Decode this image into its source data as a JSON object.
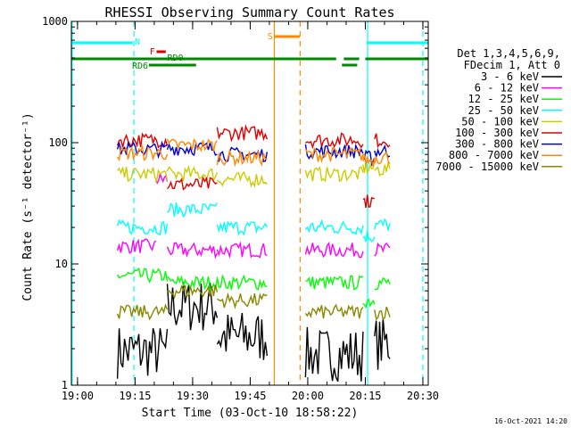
{
  "chart_data": {
    "type": "line",
    "title": "RHESSI Observing Summary Count Rates",
    "xlabel": "Start Time (03-Oct-10 18:58:22)",
    "ylabel": "Count Rate (s⁻¹ detector⁻¹)",
    "yscale": "log",
    "ylim": [
      1,
      1000
    ],
    "xlim_minutes_after_1858_22": [
      0,
      93
    ],
    "x_ticks": [
      {
        "label": "19:00",
        "t": 1.6
      },
      {
        "label": "19:15",
        "t": 16.6
      },
      {
        "label": "19:30",
        "t": 31.6
      },
      {
        "label": "19:45",
        "t": 46.6
      },
      {
        "label": "20:00",
        "t": 61.6
      },
      {
        "label": "20:15",
        "t": 76.6
      },
      {
        "label": "20:30",
        "t": 91.6
      }
    ],
    "y_ticks": [
      {
        "label": "1",
        "v": 1
      },
      {
        "label": "10",
        "v": 10
      },
      {
        "label": "100",
        "v": 100
      },
      {
        "label": "1000",
        "v": 1000
      }
    ],
    "legend_header": [
      "Det 1,3,4,5,6,9,",
      "FDecim 1, Att 0"
    ],
    "legend_position": "right",
    "series": [
      {
        "name": "3 - 6 keV",
        "color": "#000000",
        "levels": [
          [
            12,
            25,
            1.9
          ],
          [
            25,
            38,
            4.5
          ],
          [
            38,
            51,
            2.5
          ],
          [
            61,
            76,
            1.8
          ],
          [
            79,
            83,
            2.2
          ]
        ]
      },
      {
        "name": "6 - 12 keV",
        "color": "#ff00ff",
        "levels": [
          [
            12,
            22,
            14
          ],
          [
            22,
            25,
            50
          ],
          [
            25,
            38,
            13
          ],
          [
            38,
            51,
            13
          ],
          [
            61,
            76,
            13
          ],
          [
            79,
            83,
            13
          ]
        ]
      },
      {
        "name": "12 - 25 keV",
        "color": "#00ff00",
        "levels": [
          [
            12,
            25,
            8
          ],
          [
            25,
            38,
            7
          ],
          [
            38,
            51,
            7
          ],
          [
            61,
            76,
            7
          ],
          [
            76,
            79,
            5
          ],
          [
            79,
            83,
            7
          ]
        ]
      },
      {
        "name": "25 - 50 keV",
        "color": "#00ffff",
        "levels": [
          [
            12,
            25,
            20
          ],
          [
            25,
            38,
            28
          ],
          [
            38,
            51,
            20
          ],
          [
            61,
            76,
            20
          ],
          [
            76,
            79,
            17
          ],
          [
            79,
            83,
            21
          ]
        ]
      },
      {
        "name": "50 - 100 keV",
        "color": "#cccc00",
        "levels": [
          [
            12,
            25,
            55
          ],
          [
            25,
            38,
            55
          ],
          [
            38,
            51,
            50
          ],
          [
            61,
            76,
            55
          ],
          [
            76,
            79,
            62
          ],
          [
            79,
            83,
            60
          ]
        ]
      },
      {
        "name": "100 - 300 keV",
        "color": "#dd0000",
        "levels": [
          [
            12,
            25,
            105
          ],
          [
            25,
            38,
            45
          ],
          [
            38,
            51,
            120
          ],
          [
            61,
            76,
            105
          ],
          [
            76,
            79,
            33
          ],
          [
            79,
            83,
            105
          ]
        ]
      },
      {
        "name": "300 - 800 keV",
        "color": "#0000cc",
        "levels": [
          [
            12,
            25,
            88
          ],
          [
            25,
            38,
            90
          ],
          [
            38,
            51,
            80
          ],
          [
            61,
            76,
            85
          ],
          [
            76,
            79,
            75
          ],
          [
            79,
            83,
            85
          ]
        ]
      },
      {
        "name": "800 - 7000 keV",
        "color": "#ff8800",
        "levels": [
          [
            12,
            25,
            82
          ],
          [
            25,
            38,
            95
          ],
          [
            38,
            51,
            75
          ],
          [
            61,
            76,
            80
          ],
          [
            76,
            79,
            72
          ],
          [
            79,
            83,
            76
          ]
        ]
      },
      {
        "name": "7000 - 15000 keV",
        "color": "#888800",
        "levels": [
          [
            12,
            25,
            4
          ],
          [
            25,
            38,
            6
          ],
          [
            38,
            51,
            5
          ],
          [
            61,
            76,
            4
          ],
          [
            79,
            83,
            4
          ]
        ]
      }
    ],
    "flag_bars": [
      {
        "label": "N",
        "color": "#00ffff",
        "segments": [
          [
            0,
            16
          ],
          [
            77,
            93
          ]
        ]
      },
      {
        "label": "F",
        "color": "#dd0000",
        "segments": [
          [
            22.2,
            24.6
          ]
        ]
      },
      {
        "label": "S",
        "color": "#ff8800",
        "segments": [
          [
            53,
            59.5
          ]
        ]
      },
      {
        "label": "RD0",
        "color": "#008800",
        "segments": [
          [
            0,
            69
          ],
          [
            71,
            75
          ],
          [
            76.6,
            93
          ]
        ]
      },
      {
        "label": "RD6",
        "color": "#008800",
        "segments": [
          [
            20.2,
            32.5
          ],
          [
            70.5,
            74.5
          ]
        ]
      }
    ],
    "vertical_lines": [
      {
        "t": 0.2,
        "color": "#00ffff",
        "style": "solid"
      },
      {
        "t": 16.3,
        "color": "#00ffff",
        "style": "dashed"
      },
      {
        "t": 77.2,
        "color": "#00ffff",
        "style": "solid"
      },
      {
        "t": 91.6,
        "color": "#00ffff",
        "style": "dashed"
      },
      {
        "t": 52.9,
        "color": "#ff8800",
        "style": "solid"
      },
      {
        "t": 59.6,
        "color": "#ff8800",
        "style": "dashed"
      }
    ],
    "grid": false
  },
  "footer_date": "16-Oct-2021 14:20"
}
